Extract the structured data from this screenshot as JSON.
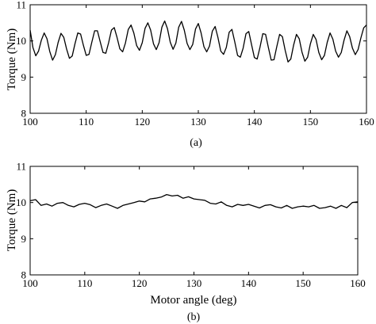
{
  "chart_data": [
    {
      "type": "line",
      "caption": "(a)",
      "xlabel": "",
      "ylabel": "Torque (Nm)",
      "xlim": [
        100,
        160
      ],
      "ylim": [
        8,
        11
      ],
      "xticks": [
        "100",
        "110",
        "120",
        "130",
        "140",
        "150",
        "160"
      ],
      "yticks": [
        "8",
        "9",
        "10",
        "11"
      ],
      "grid": false,
      "series": [
        {
          "x": [
            100.0,
            100.5,
            101.0,
            101.5,
            102.0,
            102.5,
            103.0,
            103.5,
            104.0,
            104.5,
            105.0,
            105.5,
            106.0,
            106.5,
            107.0,
            107.5,
            108.0,
            108.5,
            109.0,
            109.5,
            110.0,
            110.5,
            111.0,
            111.5,
            112.0,
            112.5,
            113.0,
            113.5,
            114.0,
            114.5,
            115.0,
            115.5,
            116.0,
            116.5,
            117.0,
            117.5,
            118.0,
            118.5,
            119.0,
            119.5,
            120.0,
            120.5,
            121.0,
            121.5,
            122.0,
            122.5,
            123.0,
            123.5,
            124.0,
            124.5,
            125.0,
            125.5,
            126.0,
            126.5,
            127.0,
            127.5,
            128.0,
            128.5,
            129.0,
            129.5,
            130.0,
            130.5,
            131.0,
            131.5,
            132.0,
            132.5,
            133.0,
            133.5,
            134.0,
            134.5,
            135.0,
            135.5,
            136.0,
            136.5,
            137.0,
            137.5,
            138.0,
            138.5,
            139.0,
            139.5,
            140.0,
            140.5,
            141.0,
            141.5,
            142.0,
            142.5,
            143.0,
            143.5,
            144.0,
            144.5,
            145.0,
            145.5,
            146.0,
            146.5,
            147.0,
            147.5,
            148.0,
            148.5,
            149.0,
            149.5,
            150.0,
            150.5,
            151.0,
            151.5,
            152.0,
            152.5,
            153.0,
            153.5,
            154.0,
            154.5,
            155.0,
            155.5,
            156.0,
            156.5,
            157.0,
            157.5,
            158.0,
            158.5,
            159.0,
            159.5,
            160.0
          ],
          "y": [
            10.3,
            9.82,
            9.59,
            9.72,
            10.02,
            10.22,
            10.06,
            9.71,
            9.47,
            9.62,
            9.96,
            10.21,
            10.1,
            9.78,
            9.52,
            9.58,
            9.92,
            10.22,
            10.19,
            9.88,
            9.6,
            9.63,
            9.96,
            10.28,
            10.28,
            9.98,
            9.68,
            9.66,
            9.95,
            10.3,
            10.37,
            10.1,
            9.78,
            9.7,
            9.94,
            10.32,
            10.44,
            10.22,
            9.87,
            9.74,
            9.95,
            10.35,
            10.5,
            10.3,
            9.92,
            9.76,
            9.95,
            10.38,
            10.55,
            10.34,
            9.96,
            9.77,
            9.94,
            10.38,
            10.54,
            10.3,
            9.93,
            9.76,
            9.9,
            10.33,
            10.48,
            10.22,
            9.84,
            9.7,
            9.86,
            10.27,
            10.4,
            10.1,
            9.72,
            9.63,
            9.82,
            10.24,
            10.32,
            9.98,
            9.6,
            9.55,
            9.8,
            10.2,
            10.26,
            9.9,
            9.54,
            9.5,
            9.82,
            10.2,
            10.18,
            9.82,
            9.47,
            9.48,
            9.84,
            10.18,
            10.12,
            9.74,
            9.42,
            9.5,
            9.88,
            10.18,
            10.06,
            9.69,
            9.44,
            9.55,
            9.92,
            10.18,
            10.04,
            9.68,
            9.48,
            9.6,
            9.96,
            10.22,
            10.05,
            9.72,
            9.55,
            9.68,
            10.02,
            10.28,
            10.12,
            9.8,
            9.62,
            9.76,
            10.08,
            10.36,
            10.44
          ]
        }
      ]
    },
    {
      "type": "line",
      "caption": "(b)",
      "xlabel": "Motor angle (deg)",
      "ylabel": "Torque (Nm)",
      "xlim": [
        100,
        160
      ],
      "ylim": [
        8,
        11
      ],
      "xticks": [
        "100",
        "110",
        "120",
        "130",
        "140",
        "150",
        "160"
      ],
      "yticks": [
        "8",
        "9",
        "10",
        "11"
      ],
      "grid": false,
      "series": [
        {
          "x": [
            100.0,
            101.0,
            102.0,
            103.0,
            104.0,
            105.0,
            106.0,
            107.0,
            108.0,
            109.0,
            110.0,
            111.0,
            112.0,
            113.0,
            114.0,
            115.0,
            116.0,
            117.0,
            118.0,
            119.0,
            120.0,
            121.0,
            122.0,
            123.0,
            124.0,
            125.0,
            126.0,
            127.0,
            128.0,
            129.0,
            130.0,
            131.0,
            132.0,
            133.0,
            134.0,
            135.0,
            136.0,
            137.0,
            138.0,
            139.0,
            140.0,
            141.0,
            142.0,
            143.0,
            144.0,
            145.0,
            146.0,
            147.0,
            148.0,
            149.0,
            150.0,
            151.0,
            152.0,
            153.0,
            154.0,
            155.0,
            156.0,
            157.0,
            158.0,
            159.0,
            160.0
          ],
          "y": [
            10.05,
            10.08,
            9.92,
            9.96,
            9.9,
            9.98,
            10.0,
            9.92,
            9.88,
            9.95,
            9.98,
            9.94,
            9.86,
            9.92,
            9.96,
            9.9,
            9.84,
            9.92,
            9.96,
            10.0,
            10.04,
            10.02,
            10.1,
            10.12,
            10.15,
            10.22,
            10.18,
            10.2,
            10.12,
            10.16,
            10.1,
            10.08,
            10.06,
            9.98,
            9.96,
            10.02,
            9.92,
            9.88,
            9.95,
            9.92,
            9.95,
            9.9,
            9.85,
            9.92,
            9.94,
            9.88,
            9.85,
            9.92,
            9.84,
            9.88,
            9.9,
            9.88,
            9.92,
            9.84,
            9.86,
            9.9,
            9.84,
            9.92,
            9.86,
            10.0,
            10.02
          ]
        }
      ]
    }
  ]
}
